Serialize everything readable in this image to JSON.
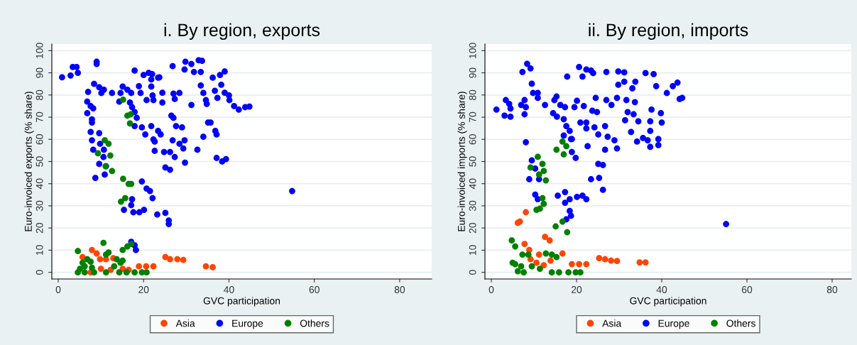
{
  "chart_data": [
    {
      "type": "scatter",
      "title": "i. By region, exports",
      "xlabel": "GVC participation",
      "ylabel": "Euro-invoiced exports (% share)",
      "xlim": [
        -1.5,
        87.5
      ],
      "ylim": [
        -3,
        103
      ],
      "xticks": [
        0,
        20,
        40,
        60,
        80
      ],
      "yticks": [
        0,
        10,
        20,
        30,
        40,
        50,
        60,
        70,
        80,
        90,
        100
      ],
      "grid": "y",
      "legend": "bottom",
      "marker": "circle",
      "series": [
        {
          "name": "Asia",
          "color": "#ff4500",
          "x": [
            7.9,
            9,
            9.8,
            11.2,
            7.6,
            10,
            12.3,
            15.1,
            18.9,
            20.6,
            22.3,
            25.1,
            26.2,
            27.9,
            29.3,
            34.6,
            36.2,
            5.7,
            12.9,
            16.5
          ],
          "values": [
            10.1,
            8.5,
            5.9,
            5.9,
            0,
            1.6,
            1.1,
            1.6,
            2.7,
            2.7,
            2.7,
            6.9,
            5.9,
            5.9,
            5.6,
            2.7,
            2.3,
            6.9,
            6.4,
            1.1
          ]
        },
        {
          "name": "Europe",
          "color": "#0000ff",
          "x": [
            0.9,
            2.9,
            3.4,
            4.3,
            4.6,
            9,
            9,
            17.9,
            20,
            21.2,
            22,
            23.4,
            23.7,
            21.8,
            26.8,
            29.8,
            31.2,
            32.9,
            33.7,
            29.6,
            31.8,
            33.4,
            36.2,
            37.9,
            39,
            8.4,
            9.6,
            10.7,
            7,
            10.1,
            12.6,
            15.1,
            14.6,
            16.2,
            17.1,
            18.9,
            19.3,
            21.8,
            24.4,
            27,
            28.4,
            33.4,
            34,
            36.7,
            38.2,
            39,
            40,
            6.8,
            7.6,
            8.2,
            6.8,
            7.9,
            7.9,
            14.3,
            16.8,
            17.3,
            17.9,
            18.4,
            17.9,
            19.6,
            20.7,
            22.3,
            22.1,
            24.4,
            27.3,
            31.2,
            34.6,
            34.8,
            37.3,
            40.1,
            41.2,
            42.3,
            43.8,
            44.8,
            7.6,
            9.6,
            7.9,
            9.8,
            8.2,
            10.7,
            10.6,
            9.6,
            11.2,
            10.9,
            8.7,
            21.8,
            20.4,
            22.3,
            22.6,
            23.4,
            24,
            22.6,
            24.8,
            26.2,
            27.3,
            26.8,
            26.5,
            27,
            27.6,
            29,
            28.4,
            29.6,
            29.3,
            32.6,
            29.7,
            25.1,
            26.2,
            34,
            35.1,
            35.7,
            36.8,
            37.1,
            37.1,
            38.4,
            39.3,
            19.6,
            20.7,
            21.5,
            22.1,
            54.8,
            17.3,
            17.1,
            15.4,
            17.6,
            19,
            20.1,
            23.2,
            25.1,
            25.9,
            25.9,
            17.1,
            18.2,
            17.9
          ],
          "values": [
            88,
            88.8,
            92.6,
            92.6,
            90,
            95,
            94,
            91,
            89,
            90,
            89.4,
            87.8,
            88,
            87,
            93,
            95,
            94,
            95.7,
            95.4,
            91.5,
            90.4,
            90.4,
            87.8,
            89,
            90.6,
            85,
            83.5,
            82.4,
            81.4,
            80.9,
            80.9,
            83.8,
            80.9,
            82.4,
            80.9,
            84,
            80.9,
            83.8,
            81,
            80.6,
            80.9,
            84.3,
            80.9,
            81.9,
            84.6,
            81,
            79.8,
            77,
            75,
            74,
            71.8,
            69,
            67.6,
            77,
            76.6,
            74.5,
            72.3,
            69.7,
            66,
            65.4,
            77.7,
            77.7,
            79.8,
            76.6,
            78.2,
            75.5,
            77.7,
            76,
            78.7,
            77.7,
            75,
            73.4,
            74.5,
            74.8,
            63.3,
            62.8,
            59.6,
            58,
            55.3,
            55.3,
            52,
            48.9,
            47.9,
            44.1,
            42.6,
            66,
            62.2,
            60,
            59,
            63.8,
            62.2,
            54.8,
            54.3,
            54.3,
            52,
            59.6,
            70.7,
            69.7,
            66,
            65.4,
            58,
            59.6,
            55.9,
            55.3,
            49.5,
            47.3,
            46.3,
            61.2,
            67.6,
            67.6,
            63.8,
            62.2,
            51.6,
            50,
            51.1,
            41,
            37.8,
            36.7,
            33.5,
            36.7,
            33,
            30.3,
            28.2,
            27.1,
            27.1,
            28.2,
            26.1,
            26.8,
            23.4,
            21.8,
            13.8,
            10.1,
            12.2
          ]
        },
        {
          "name": "Others",
          "color": "#008000",
          "x": [
            15.2,
            16.2,
            17,
            16.8,
            10.9,
            11.8,
            9.3,
            12.2,
            11.1,
            12.6,
            15.2,
            16.5,
            17.1,
            15.7,
            14.7,
            10.6,
            11.8,
            11.2,
            4.6,
            15.1,
            16.2,
            17.1,
            5.7,
            6.8,
            4.6,
            6.2,
            7.9,
            6.2,
            8.4,
            11.2,
            13.7,
            14.6,
            13.1,
            14.3,
            16,
            17.9,
            19.6,
            20.7,
            5.1,
            7.6,
            15.1
          ],
          "values": [
            77.9,
            70.7,
            71.3,
            67.2,
            59.6,
            58,
            53.7,
            52.7,
            47.9,
            45.7,
            42.2,
            39.9,
            39.9,
            33.5,
            31.9,
            13.3,
            9,
            8,
            9.6,
            10.1,
            11.7,
            12.8,
            4.3,
            5.9,
            0,
            0,
            2.1,
            2.7,
            0,
            0,
            5.9,
            4.3,
            2.7,
            0,
            0,
            0,
            0,
            0,
            1.6,
            4.8,
            5.3
          ]
        }
      ]
    },
    {
      "type": "scatter",
      "title": "ii. By region, imports",
      "xlabel": "GVC participation",
      "ylabel": "Euro-invoiced imports (% share)",
      "xlim": [
        -1.5,
        84.5
      ],
      "ylim": [
        -3,
        103
      ],
      "xticks": [
        0,
        20,
        40,
        60,
        80
      ],
      "yticks": [
        0,
        10,
        20,
        30,
        40,
        50,
        60,
        70,
        80,
        90,
        100
      ],
      "grid": "y",
      "legend": "bottom",
      "marker": "circle",
      "series": [
        {
          "name": "Asia",
          "color": "#ff4500",
          "x": [
            8.1,
            6.7,
            6.2,
            12.6,
            13.7,
            7.8,
            8.9,
            11.2,
            16.7,
            13.9,
            10.6,
            12.3,
            9.2,
            18.9,
            20.6,
            22.3,
            25.3,
            26.7,
            28.1,
            29.5,
            34.8,
            36.2
          ],
          "values": [
            27.1,
            22.9,
            22.3,
            16,
            14.4,
            12.8,
            10.1,
            8,
            8.5,
            5.3,
            4.3,
            3.2,
            5.9,
            3.7,
            3.7,
            3.7,
            6.4,
            5.9,
            5.3,
            5.1,
            4.5,
            4.5
          ]
        },
        {
          "name": "Europe",
          "color": "#0000ff",
          "x": [
            1.2,
            3.1,
            4.5,
            3.4,
            4.2,
            4.5,
            7,
            7.8,
            8.1,
            7.8,
            7.3,
            8.4,
            9.2,
            9.5,
            9.8,
            10.9,
            10.9,
            8.1,
            12.6,
            14.8,
            15.3,
            14.5,
            16.2,
            17.3,
            15.4,
            17,
            17.6,
            17,
            18.4,
            18.9,
            17.8,
            20.6,
            22.3,
            23.4,
            21.4,
            23.9,
            27,
            29.8,
            31.2,
            19.5,
            20.1,
            21.7,
            20.9,
            22.3,
            22.3,
            24.2,
            23.7,
            24.8,
            24.5,
            27,
            28.2,
            29.5,
            25.1,
            26.7,
            27.3,
            28.9,
            26.7,
            29.5,
            22.6,
            29.8,
            31.2,
            33.1,
            33.8,
            31.7,
            33.7,
            32,
            31.4,
            33.4,
            34.5,
            32.8,
            34.2,
            35.6,
            36.2,
            38.1,
            38.7,
            41.2,
            42.6,
            43.7,
            44.2,
            44.8,
            37.6,
            39.8,
            37.3,
            40,
            37.3,
            36.7,
            39.2,
            37.3,
            39.2,
            25.1,
            26.2,
            23.4,
            25.3,
            26.2,
            9.5,
            10.3,
            8.9,
            11.2,
            10.3,
            10.9,
            15.6,
            17.3,
            17.3,
            18.4,
            20.1,
            21.4,
            22.3,
            18.4,
            18.7,
            17.6,
            55.1,
            18.9,
            19.8,
            18.7
          ],
          "values": [
            73.4,
            70.7,
            70.2,
            77.7,
            76,
            73.9,
            75.5,
            77.7,
            74.5,
            71.3,
            90.4,
            94.1,
            92,
            85.1,
            80.9,
            80.9,
            78.7,
            58.7,
            75.5,
            77.7,
            79.3,
            71.8,
            75.5,
            74.5,
            70.2,
            69.1,
            66,
            61.7,
            63.8,
            60.1,
            88.3,
            92.6,
            91.5,
            91,
            88.3,
            89.9,
            90.4,
            90.6,
            90.2,
            74.5,
            77.4,
            75,
            67.6,
            67.6,
            64.9,
            65.4,
            72.9,
            72.3,
            78.7,
            77.7,
            75.5,
            78.7,
            62.2,
            66,
            61.2,
            59.6,
            55.3,
            55.9,
            56.9,
            84.6,
            86,
            83,
            86,
            77.7,
            76.8,
            72.3,
            68.6,
            71.3,
            68.1,
            63.3,
            59,
            60.6,
            89.9,
            89.4,
            84,
            80.9,
            84,
            85.6,
            78.2,
            78.7,
            73.4,
            71.8,
            68.1,
            67.6,
            63.8,
            59.6,
            60.1,
            56.6,
            57.4,
            48.9,
            48.4,
            42,
            42.6,
            37.2,
            50.5,
            46.8,
            42,
            42,
            35.1,
            33,
            34.6,
            36.2,
            31.4,
            33,
            34,
            34.6,
            33,
            27.7,
            25.5,
            23.9,
            21.8,
            54.3,
            51.6,
            60.1
          ]
        },
        {
          "name": "Others",
          "color": "#008000",
          "x": [
            16.7,
            17.6,
            15.3,
            17,
            10.9,
            9.2,
            12,
            12.3,
            11.2,
            12.8,
            12,
            12.3,
            10.6,
            11.4,
            16.7,
            15.1,
            17.8,
            4.8,
            5.6,
            7.3,
            8.7,
            12.8,
            14.2,
            15.3,
            5.6,
            7,
            6.2,
            7.6,
            9.5,
            11.4,
            14.2,
            15.9,
            18.1,
            19.8,
            20.9,
            5
          ],
          "values": [
            59,
            56.9,
            55.3,
            53.2,
            52.1,
            47.3,
            48.9,
            45.7,
            44.1,
            41.5,
            33.5,
            30.9,
            28.2,
            28.7,
            22.9,
            20.7,
            18.1,
            14.4,
            11.7,
            8,
            8,
            8.5,
            8,
            6.9,
            3.7,
            2.7,
            0.5,
            0,
            2.7,
            1.6,
            0,
            0,
            0,
            0,
            0,
            4.3
          ]
        }
      ]
    }
  ]
}
